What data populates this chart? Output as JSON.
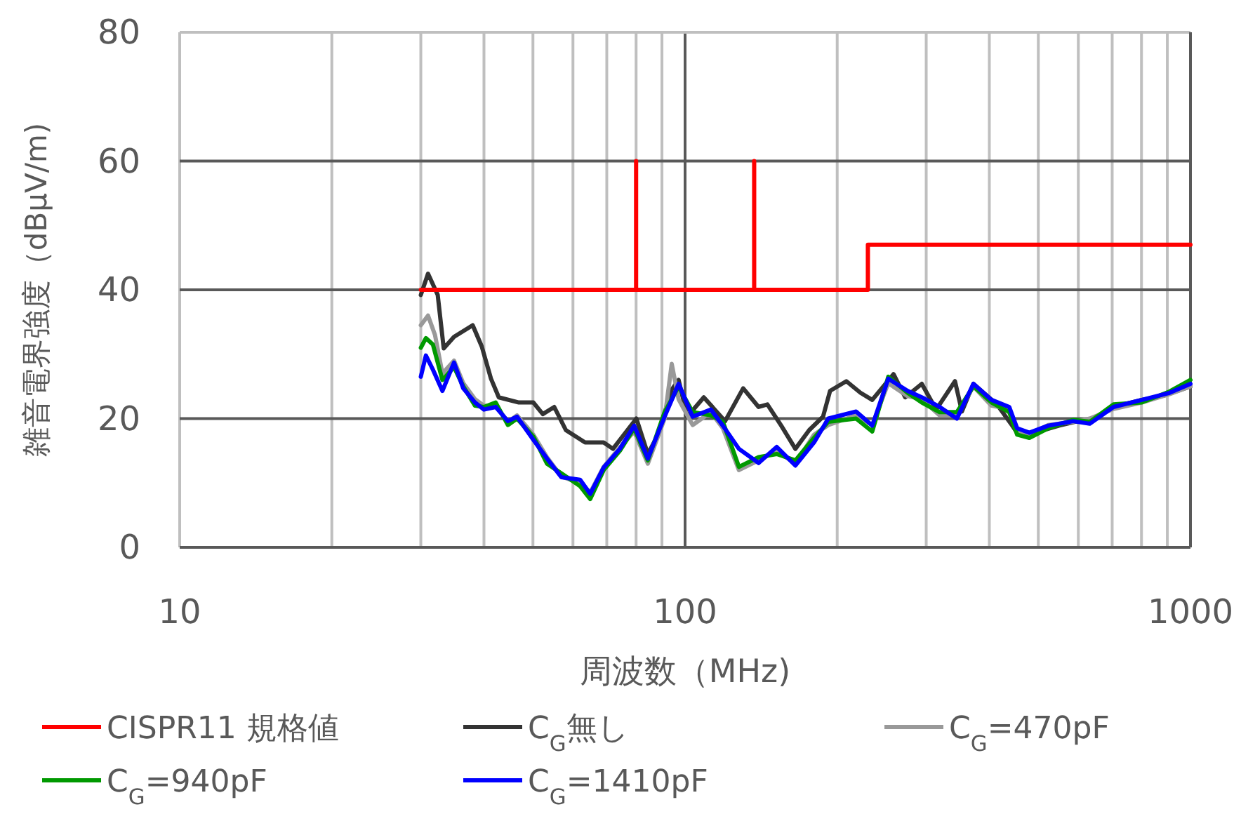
{
  "chart_data": {
    "type": "line",
    "xlabel": "周波数（MHz)",
    "ylabel": "雑音電界強度（dBμV/m)",
    "log": "x",
    "xlim": [
      10,
      1000
    ],
    "xticks": [
      10,
      100,
      1000
    ],
    "ylim": [
      0,
      80
    ],
    "yticks": [
      0,
      20,
      40,
      60,
      80
    ],
    "grid": true,
    "legend": "bottom",
    "series": [
      {
        "name": "CISPR11 規格値",
        "color": "#ff0000",
        "x": [
          30,
          80,
          80,
          80,
          137,
          137,
          137,
          230,
          230,
          1000
        ],
        "values": [
          40,
          40,
          60,
          40,
          40,
          60,
          40,
          40,
          47,
          47
        ]
      },
      {
        "name": "C$_{G}$無し",
        "color": "#333333",
        "x": [
          30,
          31,
          32.4,
          33.3,
          34.9,
          38,
          39.6,
          41.3,
          42.8,
          46.9,
          50.1,
          52.3,
          55.1,
          58.1,
          63.4,
          69,
          72,
          80.1,
          84.4,
          88.3,
          94.1,
          97.1,
          101,
          108.9,
          120,
          130.3,
          139.8,
          145.5,
          155,
          165.3,
          176,
          187.5,
          193.6,
          208.5,
          222.4,
          234.6,
          258.5,
          272.6,
          294,
          314,
          342,
          353,
          372,
          414,
          444,
          454,
          492,
          549,
          599,
          644,
          704,
          801,
          889,
          1000
        ],
        "values": [
          39.2,
          42.5,
          39.2,
          30.9,
          32.7,
          34.5,
          31.2,
          26.2,
          23.3,
          22.5,
          22.5,
          20.7,
          21.8,
          18.2,
          16.3,
          16.3,
          15.3,
          20,
          14.5,
          17.4,
          24.5,
          26,
          20.3,
          23.3,
          19.6,
          24.7,
          21.8,
          22.2,
          18.9,
          15.3,
          18.2,
          20.3,
          24.3,
          25.8,
          24,
          22.9,
          26.9,
          23.3,
          25.4,
          21.4,
          25.8,
          21.1,
          25.4,
          22.2,
          18.9,
          17.8,
          17.8,
          18.9,
          19.6,
          20,
          21.8,
          22.9,
          23.6,
          25
        ]
      },
      {
        "name": "C$_{G}$=470pF",
        "color": "#999999",
        "x": [
          30,
          31,
          32,
          33.1,
          34.9,
          36.4,
          38.4,
          40,
          42.2,
          44.6,
          46.5,
          50.1,
          53.3,
          56.9,
          62,
          64.9,
          69,
          74.3,
          79.3,
          84.4,
          91.1,
          94.1,
          97.1,
          103.5,
          112.5,
          118.8,
          127.8,
          139.8,
          151.8,
          165.3,
          180,
          192,
          218,
          234.6,
          252.4,
          275.6,
          294,
          319,
          345,
          372,
          404,
          438,
          454,
          480,
          523,
          586,
          632,
          704,
          801,
          909,
          1000
        ],
        "values": [
          34.5,
          36,
          33,
          27,
          29,
          25.5,
          23,
          22,
          22,
          19.5,
          20.5,
          17.5,
          14,
          11,
          10,
          8.5,
          12.5,
          15.5,
          18,
          13,
          20,
          28.5,
          23,
          19,
          21,
          18.5,
          12,
          13.5,
          15,
          13,
          17.5,
          19,
          20.5,
          19,
          25.5,
          23.5,
          23,
          20.5,
          20.5,
          25,
          22,
          21.5,
          18,
          17.5,
          19,
          19.5,
          20,
          21.5,
          22.5,
          23.8,
          25
        ]
      },
      {
        "name": "C$_{G}$=940pF",
        "color": "#009900",
        "x": [
          30,
          30.7,
          31.7,
          33.1,
          34.9,
          36.4,
          38.4,
          40,
          42.2,
          44.6,
          46.5,
          50.1,
          53.3,
          56.9,
          62,
          64.9,
          69,
          74.3,
          79.3,
          84.4,
          91.1,
          97.1,
          103.5,
          112.5,
          118.8,
          127.8,
          139.8,
          151.8,
          165.3,
          180,
          192,
          218,
          234.6,
          252.4,
          275.6,
          294,
          319,
          345,
          372,
          404,
          438,
          454,
          480,
          523,
          586,
          632,
          704,
          801,
          909,
          1000
        ],
        "values": [
          31,
          32.5,
          31.5,
          26,
          28,
          25,
          22,
          21.8,
          22.5,
          19,
          20,
          17.2,
          13,
          11.5,
          9.5,
          7.5,
          12,
          15,
          18.5,
          13.5,
          21,
          25,
          21,
          20.5,
          19.5,
          12.5,
          14,
          14.5,
          13.5,
          17,
          19.5,
          20,
          18,
          26.5,
          24,
          22.5,
          21,
          21,
          25,
          22.5,
          21,
          17.5,
          17,
          18.5,
          19.8,
          19.5,
          22.2,
          22.5,
          24.2,
          26
        ]
      },
      {
        "name": "C$_{G}$=1410pF",
        "color": "#0000ff",
        "x": [
          30,
          30.7,
          31.7,
          33.1,
          34.9,
          36.4,
          38.4,
          40,
          42.2,
          44.6,
          46.5,
          50.1,
          53.3,
          56.9,
          62,
          64.9,
          69,
          74.3,
          79.3,
          84.4,
          91.1,
          97.1,
          103.5,
          112.5,
          118.8,
          127.8,
          139.8,
          151.8,
          165.3,
          180,
          192,
          218,
          234.6,
          252.4,
          275.6,
          294,
          319,
          345,
          372,
          404,
          438,
          454,
          480,
          523,
          586,
          632,
          704,
          801,
          909,
          1000
        ],
        "values": [
          26.5,
          29.8,
          27.6,
          24.3,
          28.7,
          24.7,
          22.5,
          21.4,
          21.8,
          19.6,
          20.3,
          16.7,
          13.8,
          10.9,
          10.5,
          8.3,
          12.4,
          15.3,
          18.9,
          13.8,
          20.3,
          25.4,
          20.3,
          21.4,
          18.9,
          15.3,
          13.1,
          15.6,
          12.7,
          16.3,
          20,
          21.1,
          18.9,
          26.2,
          24.3,
          23.3,
          21.8,
          20,
          25.4,
          22.9,
          21.8,
          18.5,
          17.8,
          18.9,
          19.6,
          19.2,
          21.8,
          22.9,
          24,
          25.4
        ]
      }
    ]
  }
}
